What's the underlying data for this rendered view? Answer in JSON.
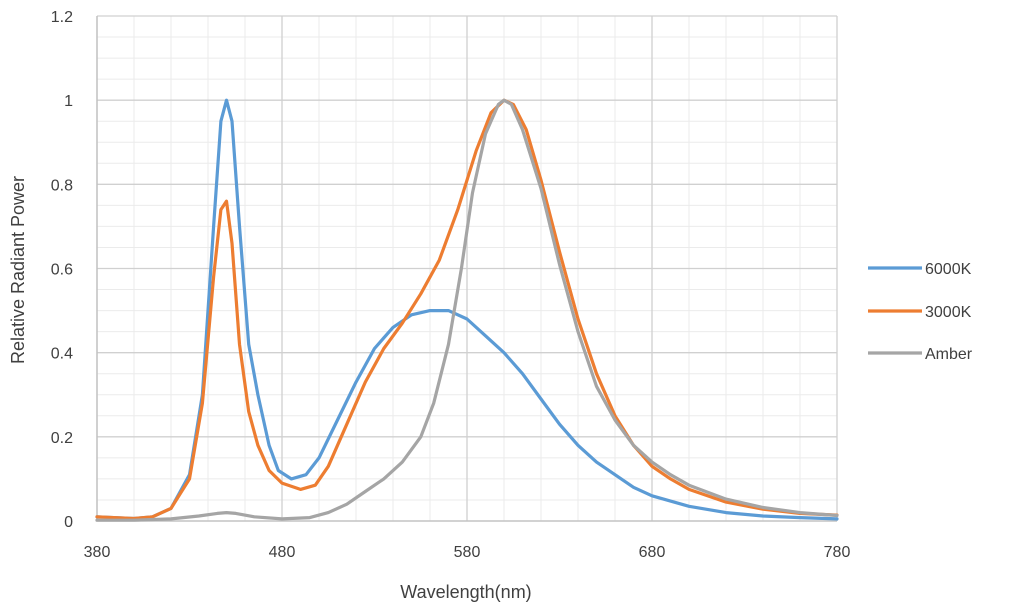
{
  "chart_data": {
    "type": "line",
    "title": "",
    "xlabel": "Wavelength(nm)",
    "ylabel": "Relative Radiant Power",
    "xlim": [
      380,
      780
    ],
    "ylim": [
      0,
      1.2
    ],
    "x_ticks": [
      "380",
      "480",
      "580",
      "680",
      "780"
    ],
    "y_ticks": [
      "0",
      "0.2",
      "0.4",
      "0.6",
      "0.8",
      "1",
      "1.2"
    ],
    "grid": true,
    "legend_position": "right",
    "series": [
      {
        "name": "6000K",
        "color": "#5B9BD5",
        "points": [
          [
            380,
            0.01
          ],
          [
            400,
            0.006
          ],
          [
            410,
            0.01
          ],
          [
            420,
            0.03
          ],
          [
            430,
            0.11
          ],
          [
            437,
            0.3
          ],
          [
            443,
            0.7
          ],
          [
            447,
            0.95
          ],
          [
            450,
            1.0
          ],
          [
            453,
            0.95
          ],
          [
            457,
            0.7
          ],
          [
            462,
            0.42
          ],
          [
            467,
            0.3
          ],
          [
            473,
            0.18
          ],
          [
            478,
            0.12
          ],
          [
            485,
            0.1
          ],
          [
            493,
            0.11
          ],
          [
            500,
            0.15
          ],
          [
            510,
            0.24
          ],
          [
            520,
            0.33
          ],
          [
            530,
            0.41
          ],
          [
            540,
            0.46
          ],
          [
            550,
            0.49
          ],
          [
            560,
            0.5
          ],
          [
            570,
            0.5
          ],
          [
            580,
            0.48
          ],
          [
            590,
            0.44
          ],
          [
            600,
            0.4
          ],
          [
            610,
            0.35
          ],
          [
            620,
            0.29
          ],
          [
            630,
            0.23
          ],
          [
            640,
            0.18
          ],
          [
            650,
            0.14
          ],
          [
            660,
            0.11
          ],
          [
            670,
            0.08
          ],
          [
            680,
            0.06
          ],
          [
            700,
            0.035
          ],
          [
            720,
            0.02
          ],
          [
            740,
            0.012
          ],
          [
            760,
            0.008
          ],
          [
            780,
            0.005
          ]
        ]
      },
      {
        "name": "3000K",
        "color": "#ED7D31",
        "points": [
          [
            380,
            0.01
          ],
          [
            400,
            0.006
          ],
          [
            410,
            0.01
          ],
          [
            420,
            0.03
          ],
          [
            430,
            0.1
          ],
          [
            437,
            0.28
          ],
          [
            443,
            0.58
          ],
          [
            447,
            0.74
          ],
          [
            450,
            0.76
          ],
          [
            453,
            0.66
          ],
          [
            457,
            0.42
          ],
          [
            462,
            0.26
          ],
          [
            467,
            0.18
          ],
          [
            473,
            0.12
          ],
          [
            480,
            0.09
          ],
          [
            490,
            0.075
          ],
          [
            498,
            0.085
          ],
          [
            505,
            0.13
          ],
          [
            515,
            0.23
          ],
          [
            525,
            0.33
          ],
          [
            535,
            0.41
          ],
          [
            545,
            0.47
          ],
          [
            555,
            0.54
          ],
          [
            565,
            0.62
          ],
          [
            575,
            0.74
          ],
          [
            585,
            0.88
          ],
          [
            593,
            0.97
          ],
          [
            600,
            1.0
          ],
          [
            605,
            0.99
          ],
          [
            612,
            0.93
          ],
          [
            620,
            0.81
          ],
          [
            630,
            0.64
          ],
          [
            640,
            0.48
          ],
          [
            650,
            0.35
          ],
          [
            660,
            0.25
          ],
          [
            670,
            0.18
          ],
          [
            680,
            0.13
          ],
          [
            690,
            0.1
          ],
          [
            700,
            0.075
          ],
          [
            720,
            0.045
          ],
          [
            740,
            0.028
          ],
          [
            760,
            0.018
          ],
          [
            780,
            0.014
          ]
        ]
      },
      {
        "name": "Amber",
        "color": "#A5A5A5",
        "points": [
          [
            380,
            0.002
          ],
          [
            400,
            0.002
          ],
          [
            420,
            0.005
          ],
          [
            435,
            0.012
          ],
          [
            445,
            0.018
          ],
          [
            450,
            0.02
          ],
          [
            455,
            0.018
          ],
          [
            465,
            0.01
          ],
          [
            480,
            0.005
          ],
          [
            495,
            0.008
          ],
          [
            505,
            0.02
          ],
          [
            515,
            0.04
          ],
          [
            525,
            0.07
          ],
          [
            535,
            0.1
          ],
          [
            545,
            0.14
          ],
          [
            555,
            0.2
          ],
          [
            562,
            0.28
          ],
          [
            570,
            0.42
          ],
          [
            577,
            0.6
          ],
          [
            583,
            0.78
          ],
          [
            590,
            0.92
          ],
          [
            597,
            0.99
          ],
          [
            600,
            1.0
          ],
          [
            604,
            0.99
          ],
          [
            610,
            0.93
          ],
          [
            620,
            0.79
          ],
          [
            630,
            0.61
          ],
          [
            640,
            0.45
          ],
          [
            650,
            0.32
          ],
          [
            660,
            0.24
          ],
          [
            670,
            0.18
          ],
          [
            680,
            0.14
          ],
          [
            690,
            0.11
          ],
          [
            700,
            0.085
          ],
          [
            720,
            0.052
          ],
          [
            740,
            0.032
          ],
          [
            760,
            0.02
          ],
          [
            780,
            0.013
          ]
        ]
      }
    ]
  }
}
